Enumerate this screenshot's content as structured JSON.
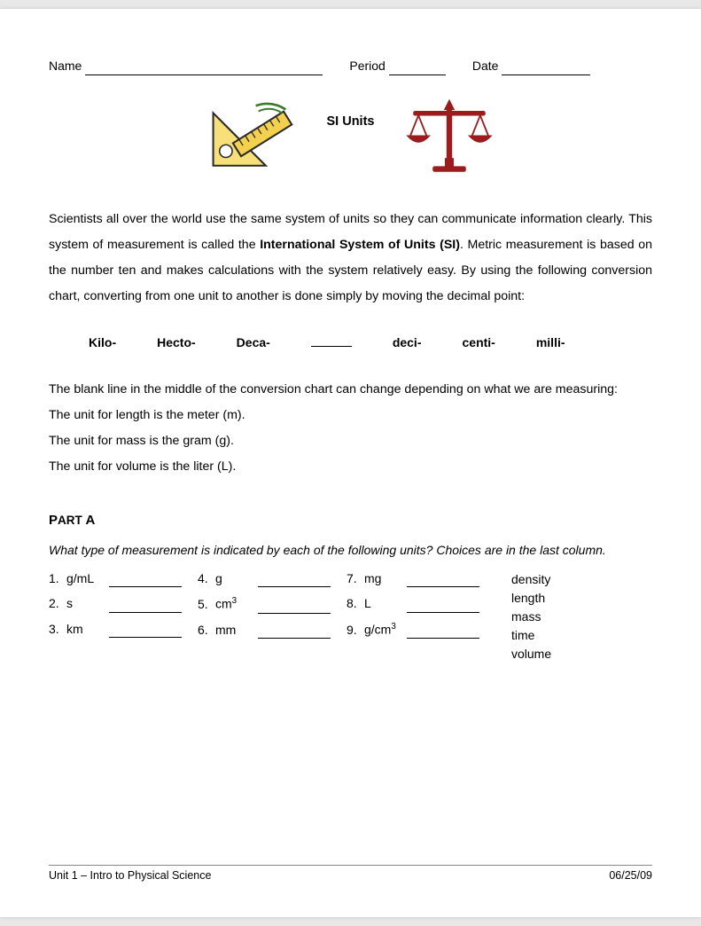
{
  "header": {
    "name_label": "Name",
    "period_label": "Period",
    "date_label": "Date",
    "name_blank_width": 268,
    "period_blank_width": 64,
    "date_blank_width": 100
  },
  "title": "SI Units",
  "icons": {
    "left": "ruler-triangle",
    "right": "balance-scale"
  },
  "intro_html": "Scientists all over the world use the same system of units so they can communicate information clearly.  This system of measurement is called the <b>International System of Units (SI)</b>.  Metric measurement is based on the number ten and makes calculations with the system relatively easy.  By using the following conversion chart, converting from one unit to another is done simply by moving the decimal point:",
  "prefixes": [
    "Kilo-",
    "Hecto-",
    "Deca-",
    "",
    "deci-",
    "centi-",
    "milli-"
  ],
  "body_lines": [
    "The blank line in the middle of the conversion chart can change depending on what we are measuring:",
    "The unit for length is the meter (m).",
    "The unit for mass is the gram (g).",
    "The unit for volume is the liter (L)."
  ],
  "part_a": {
    "label": "Part A",
    "instructions": "What type of measurement is indicated by each of the following units?  Choices are in the last column.",
    "items": [
      {
        "n": "1.",
        "u": "g/mL"
      },
      {
        "n": "2.",
        "u": "s"
      },
      {
        "n": "3.",
        "u": "km"
      },
      {
        "n": "4.",
        "u": "g"
      },
      {
        "n": "5.",
        "u_html": "cm<sup>3</sup>"
      },
      {
        "n": "6.",
        "u": "mm"
      },
      {
        "n": "7.",
        "u": "mg"
      },
      {
        "n": "8.",
        "u": "L"
      },
      {
        "n": "9.",
        "u_html": "g/cm<sup>3</sup>"
      }
    ],
    "choices": [
      "density",
      "length",
      "mass",
      "time",
      "volume"
    ]
  },
  "footer": {
    "left": "Unit 1 – Intro to Physical Science",
    "right": "06/25/09"
  },
  "colors": {
    "ruler_fill": "#f3d04e",
    "ruler_stroke": "#2a2a2a",
    "scale_color": "#9b1c1c"
  }
}
